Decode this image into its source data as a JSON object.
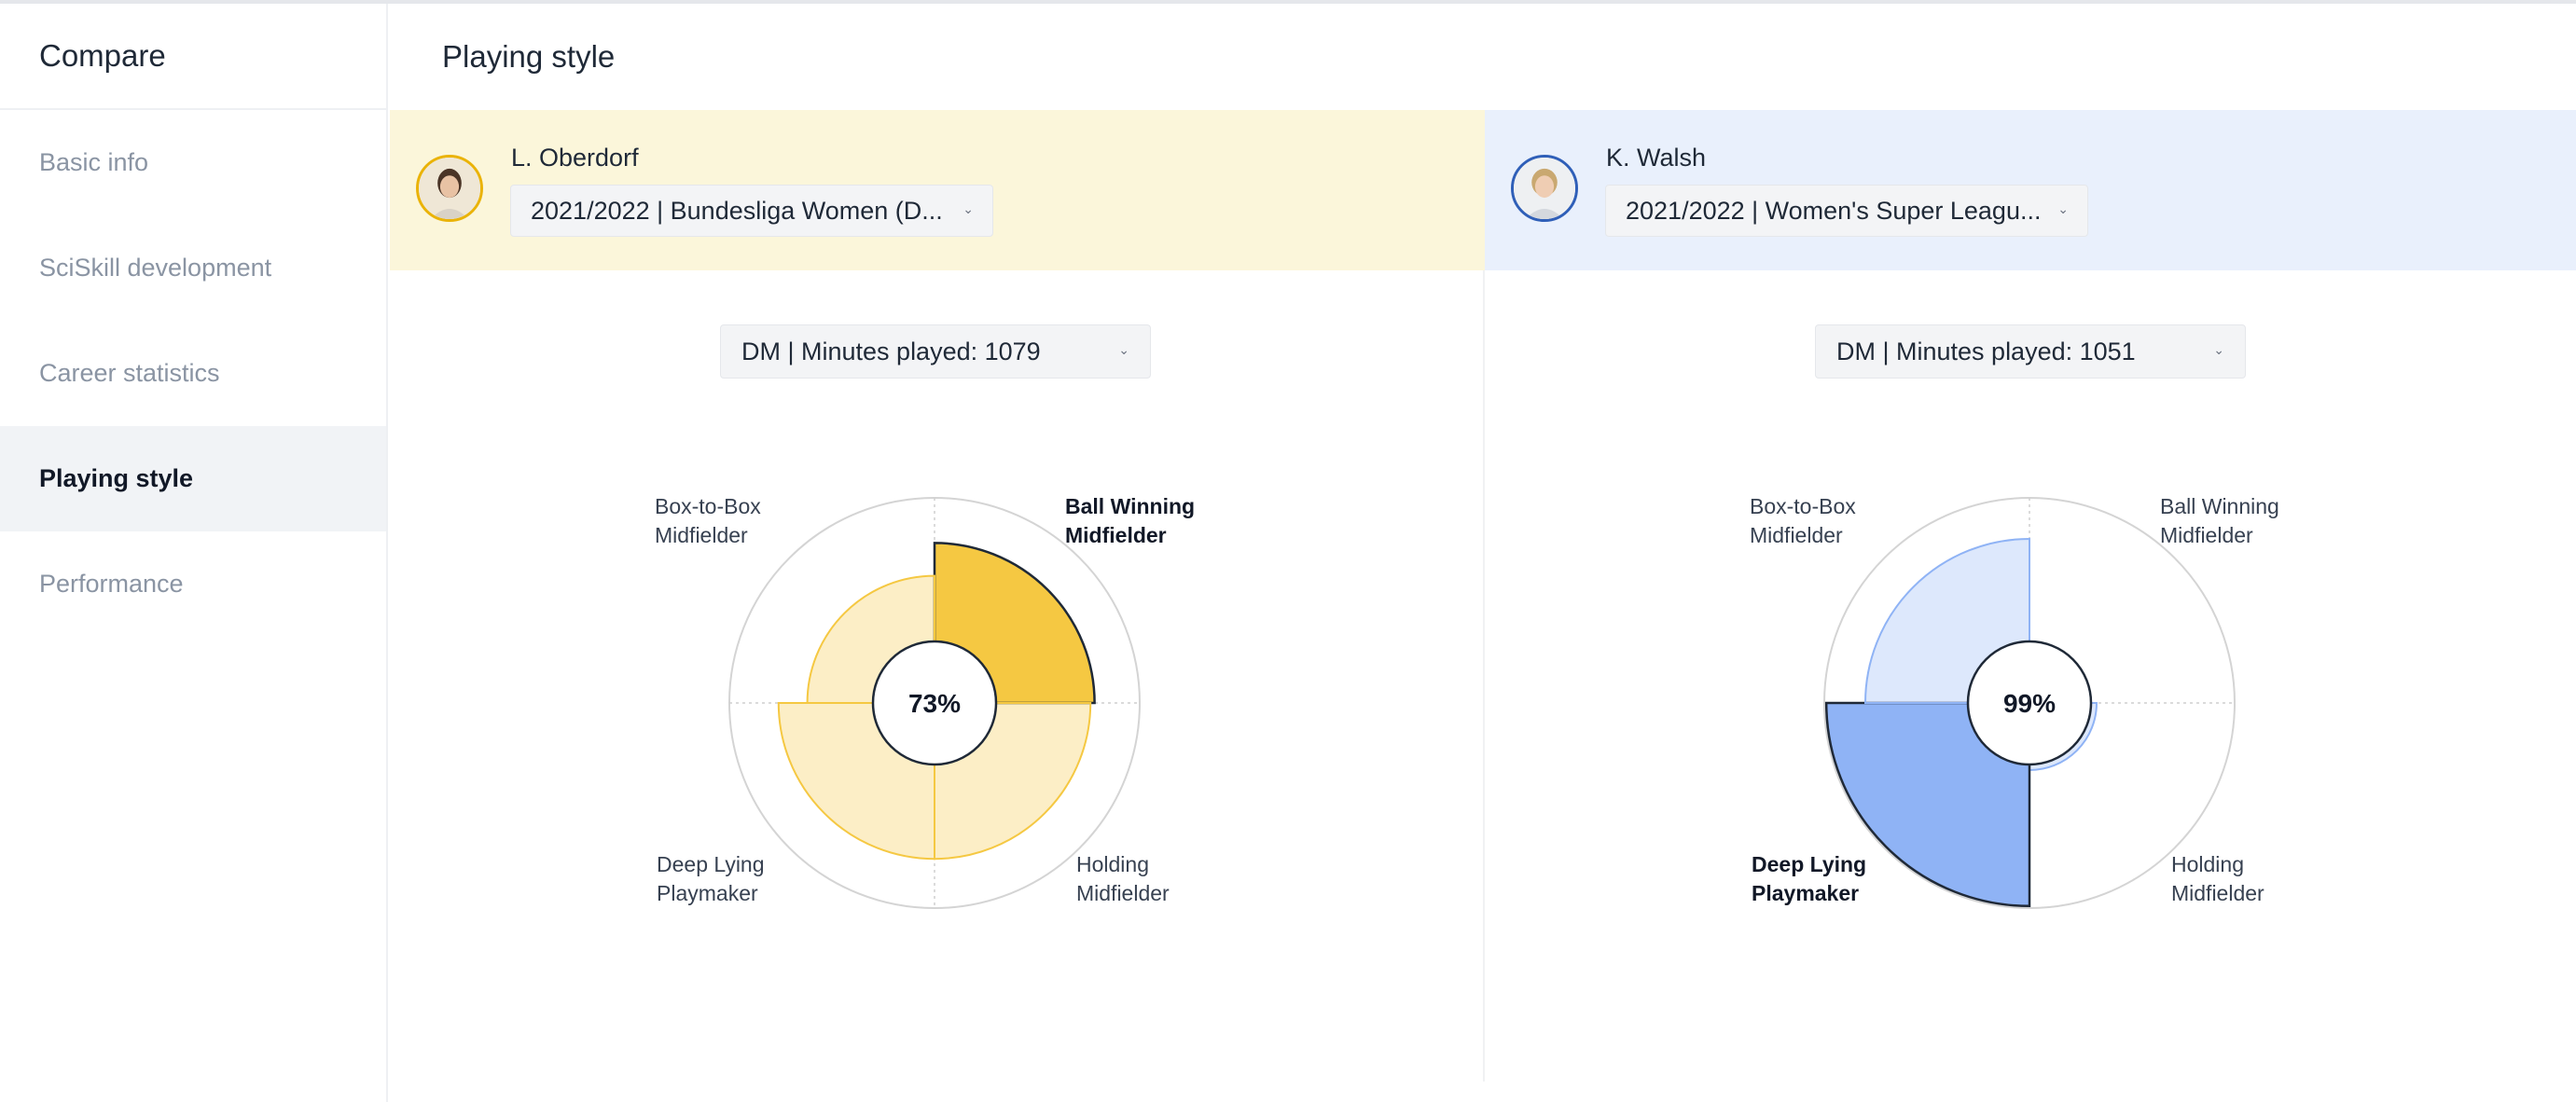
{
  "sidebar": {
    "title": "Compare",
    "items": [
      {
        "label": "Basic info",
        "active": false
      },
      {
        "label": "SciSkill development",
        "active": false
      },
      {
        "label": "Career statistics",
        "active": false
      },
      {
        "label": "Playing style",
        "active": true
      },
      {
        "label": "Performance",
        "active": false
      }
    ]
  },
  "page": {
    "title": "Playing style"
  },
  "players": [
    {
      "name": "L. Oberdorf",
      "season": "2021/2022 | Bundesliga Women (D...",
      "position_filter": "DM | Minutes played: 1079",
      "accent": "#f5c842",
      "band_color": "#fbf6da",
      "center_value": "73%",
      "chart_data": {
        "type": "polar-area",
        "roles": [
          "Ball Winning Midfielder",
          "Holding Midfielder",
          "Deep Lying Playmaker",
          "Box-to-Box Midfielder"
        ],
        "values": [
          0.78,
          0.76,
          0.76,
          0.62
        ],
        "highlighted": "Ball Winning Midfielder"
      },
      "labels": {
        "top_left": "Box-to-Box\nMidfielder",
        "top_right": "Ball Winning\nMidfielder",
        "bottom_left": "Deep Lying\nPlaymaker",
        "bottom_right": "Holding\nMidfielder"
      }
    },
    {
      "name": "K. Walsh",
      "season": "2021/2022 | Women's Super Leagu...",
      "position_filter": "DM | Minutes played: 1051",
      "accent": "#8fb3f5",
      "band_color": "#e9f0fc",
      "center_value": "99%",
      "chart_data": {
        "type": "polar-area",
        "roles": [
          "Ball Winning Midfielder",
          "Holding Midfielder",
          "Deep Lying Playmaker",
          "Box-to-Box Midfielder"
        ],
        "values": [
          0.0,
          0.25,
          0.99,
          0.8
        ],
        "highlighted": "Deep Lying Playmaker"
      },
      "labels": {
        "top_left": "Box-to-Box\nMidfielder",
        "top_right": "Ball Winning\nMidfielder",
        "bottom_left": "Deep Lying\nPlaymaker",
        "bottom_right": "Holding\nMidfielder"
      }
    }
  ]
}
